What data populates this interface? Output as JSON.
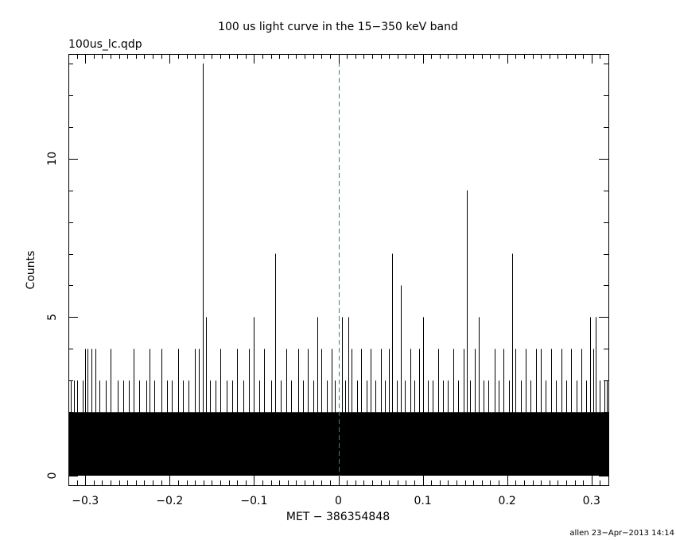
{
  "chart_data": {
    "type": "bar",
    "title": "100 us light curve in the 15−350 keV band",
    "subtitle": "100us_lc.qdp",
    "xlabel": "MET − 386354848",
    "ylabel": "Counts",
    "xlim": [
      -0.32,
      0.32
    ],
    "ylim": [
      -0.3,
      13.3
    ],
    "bin_width": 0.0001,
    "grid": false,
    "x_ticks": [
      {
        "value": -0.3,
        "label": "−0.3"
      },
      {
        "value": -0.2,
        "label": "−0.2"
      },
      {
        "value": -0.1,
        "label": "−0.1"
      },
      {
        "value": 0,
        "label": "0"
      },
      {
        "value": 0.1,
        "label": "0.1"
      },
      {
        "value": 0.2,
        "label": "0.2"
      },
      {
        "value": 0.3,
        "label": "0.3"
      }
    ],
    "y_ticks": [
      {
        "value": 0,
        "label": "0"
      },
      {
        "value": 5,
        "label": "5"
      },
      {
        "value": 10,
        "label": "10"
      }
    ],
    "trigger_time": 0,
    "trigger_line_color": "#1a8fa8",
    "series_color": "#000000",
    "baseline_max_counts": 2,
    "peaks": [
      {
        "x": -0.317,
        "y": 3
      },
      {
        "x": -0.313,
        "y": 3
      },
      {
        "x": -0.31,
        "y": 3
      },
      {
        "x": -0.303,
        "y": 3
      },
      {
        "x": -0.3,
        "y": 4
      },
      {
        "x": -0.297,
        "y": 4
      },
      {
        "x": -0.293,
        "y": 4
      },
      {
        "x": -0.288,
        "y": 4
      },
      {
        "x": -0.283,
        "y": 3
      },
      {
        "x": -0.276,
        "y": 3
      },
      {
        "x": -0.27,
        "y": 4
      },
      {
        "x": -0.262,
        "y": 3
      },
      {
        "x": -0.255,
        "y": 3
      },
      {
        "x": -0.248,
        "y": 3
      },
      {
        "x": -0.243,
        "y": 4
      },
      {
        "x": -0.236,
        "y": 3
      },
      {
        "x": -0.228,
        "y": 3
      },
      {
        "x": -0.224,
        "y": 4
      },
      {
        "x": -0.218,
        "y": 3
      },
      {
        "x": -0.21,
        "y": 4
      },
      {
        "x": -0.203,
        "y": 3
      },
      {
        "x": -0.197,
        "y": 3
      },
      {
        "x": -0.19,
        "y": 4
      },
      {
        "x": -0.184,
        "y": 3
      },
      {
        "x": -0.178,
        "y": 3
      },
      {
        "x": -0.17,
        "y": 4
      },
      {
        "x": -0.165,
        "y": 4
      },
      {
        "x": -0.161,
        "y": 13
      },
      {
        "x": -0.157,
        "y": 5
      },
      {
        "x": -0.152,
        "y": 3
      },
      {
        "x": -0.146,
        "y": 3
      },
      {
        "x": -0.14,
        "y": 4
      },
      {
        "x": -0.132,
        "y": 3
      },
      {
        "x": -0.126,
        "y": 3
      },
      {
        "x": -0.12,
        "y": 4
      },
      {
        "x": -0.113,
        "y": 3
      },
      {
        "x": -0.106,
        "y": 4
      },
      {
        "x": -0.1,
        "y": 5
      },
      {
        "x": -0.094,
        "y": 3
      },
      {
        "x": -0.088,
        "y": 4
      },
      {
        "x": -0.08,
        "y": 3
      },
      {
        "x": -0.075,
        "y": 7
      },
      {
        "x": -0.068,
        "y": 3
      },
      {
        "x": -0.062,
        "y": 4
      },
      {
        "x": -0.056,
        "y": 3
      },
      {
        "x": -0.048,
        "y": 4
      },
      {
        "x": -0.042,
        "y": 3
      },
      {
        "x": -0.036,
        "y": 4
      },
      {
        "x": -0.03,
        "y": 3
      },
      {
        "x": -0.025,
        "y": 5
      },
      {
        "x": -0.02,
        "y": 4
      },
      {
        "x": -0.014,
        "y": 3
      },
      {
        "x": -0.008,
        "y": 4
      },
      {
        "x": -0.004,
        "y": 3
      },
      {
        "x": 0.004,
        "y": 5
      },
      {
        "x": 0.008,
        "y": 3
      },
      {
        "x": 0.012,
        "y": 5
      },
      {
        "x": 0.016,
        "y": 4
      },
      {
        "x": 0.022,
        "y": 3
      },
      {
        "x": 0.027,
        "y": 4
      },
      {
        "x": 0.033,
        "y": 3
      },
      {
        "x": 0.038,
        "y": 4
      },
      {
        "x": 0.044,
        "y": 3
      },
      {
        "x": 0.05,
        "y": 4
      },
      {
        "x": 0.055,
        "y": 3
      },
      {
        "x": 0.06,
        "y": 4
      },
      {
        "x": 0.064,
        "y": 7
      },
      {
        "x": 0.069,
        "y": 3
      },
      {
        "x": 0.074,
        "y": 6
      },
      {
        "x": 0.079,
        "y": 3
      },
      {
        "x": 0.085,
        "y": 4
      },
      {
        "x": 0.09,
        "y": 3
      },
      {
        "x": 0.096,
        "y": 4
      },
      {
        "x": 0.1,
        "y": 5
      },
      {
        "x": 0.106,
        "y": 3
      },
      {
        "x": 0.112,
        "y": 3
      },
      {
        "x": 0.118,
        "y": 4
      },
      {
        "x": 0.124,
        "y": 3
      },
      {
        "x": 0.13,
        "y": 3
      },
      {
        "x": 0.136,
        "y": 4
      },
      {
        "x": 0.142,
        "y": 3
      },
      {
        "x": 0.148,
        "y": 4
      },
      {
        "x": 0.152,
        "y": 9
      },
      {
        "x": 0.156,
        "y": 3
      },
      {
        "x": 0.162,
        "y": 4
      },
      {
        "x": 0.166,
        "y": 5
      },
      {
        "x": 0.172,
        "y": 3
      },
      {
        "x": 0.178,
        "y": 3
      },
      {
        "x": 0.185,
        "y": 4
      },
      {
        "x": 0.19,
        "y": 3
      },
      {
        "x": 0.196,
        "y": 4
      },
      {
        "x": 0.202,
        "y": 3
      },
      {
        "x": 0.206,
        "y": 7
      },
      {
        "x": 0.21,
        "y": 4
      },
      {
        "x": 0.216,
        "y": 3
      },
      {
        "x": 0.222,
        "y": 4
      },
      {
        "x": 0.228,
        "y": 3
      },
      {
        "x": 0.234,
        "y": 4
      },
      {
        "x": 0.24,
        "y": 4
      },
      {
        "x": 0.246,
        "y": 3
      },
      {
        "x": 0.252,
        "y": 4
      },
      {
        "x": 0.258,
        "y": 3
      },
      {
        "x": 0.264,
        "y": 4
      },
      {
        "x": 0.27,
        "y": 3
      },
      {
        "x": 0.276,
        "y": 4
      },
      {
        "x": 0.282,
        "y": 3
      },
      {
        "x": 0.288,
        "y": 4
      },
      {
        "x": 0.294,
        "y": 3
      },
      {
        "x": 0.298,
        "y": 5
      },
      {
        "x": 0.302,
        "y": 4
      },
      {
        "x": 0.305,
        "y": 5
      },
      {
        "x": 0.31,
        "y": 3
      },
      {
        "x": 0.315,
        "y": 3
      },
      {
        "x": 0.318,
        "y": 3
      }
    ]
  },
  "footer": {
    "stamp": "allen 23−Apr−2013 14:14"
  }
}
